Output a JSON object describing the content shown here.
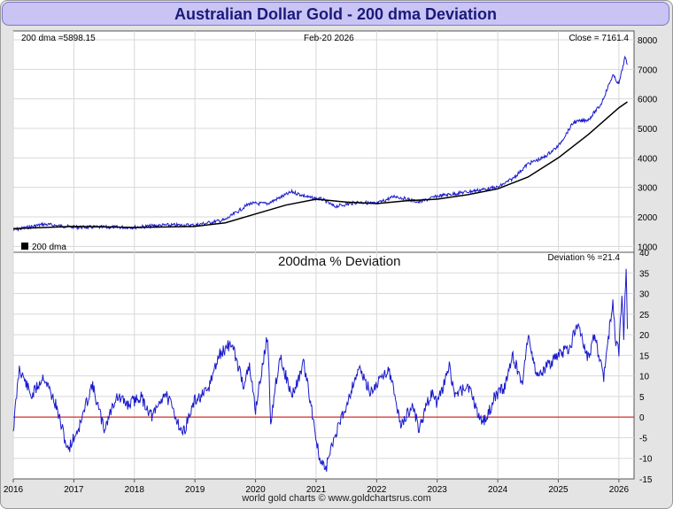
{
  "title": "Australian Dollar Gold - 200 dma Deviation",
  "footer": "world gold charts © www.goldchartsrus.com",
  "colors": {
    "price": "#1a1acc",
    "dma": "#000000",
    "deviation": "#1a1acc",
    "zero_line": "#cc0000",
    "title_bg": "#c9c4f4",
    "title_text": "#1a1a7a"
  },
  "chart_data": [
    {
      "type": "line",
      "panel": "price",
      "info_left": "200 dma =5898.15",
      "info_date": "Feb-20  2026",
      "info_close": "Close = 7161.4",
      "legend": "200 dma",
      "ylim": [
        800,
        8300
      ],
      "yticks": [
        1000,
        2000,
        3000,
        4000,
        5000,
        6000,
        7000,
        8000
      ],
      "xlim": [
        2016.0,
        2026.25
      ],
      "series": [
        {
          "name": "Price",
          "x": [
            2016.0,
            2016.5,
            2017.0,
            2017.5,
            2018.0,
            2018.5,
            2019.0,
            2019.5,
            2019.9,
            2020.2,
            2020.6,
            2020.9,
            2021.1,
            2021.3,
            2021.7,
            2022.0,
            2022.3,
            2022.7,
            2023.0,
            2023.5,
            2024.0,
            2024.25,
            2024.5,
            2024.75,
            2025.0,
            2025.25,
            2025.5,
            2025.7,
            2025.9,
            2026.0,
            2026.1,
            2026.14
          ],
          "y": [
            1550,
            1750,
            1650,
            1650,
            1650,
            1720,
            1720,
            1900,
            2450,
            2450,
            2850,
            2650,
            2600,
            2350,
            2500,
            2450,
            2700,
            2500,
            2700,
            2850,
            3000,
            3300,
            3800,
            4000,
            4400,
            5200,
            5300,
            5800,
            6800,
            6500,
            7400,
            7161
          ]
        },
        {
          "x": [
            2016.0,
            2017.0,
            2018.0,
            2019.0,
            2019.5,
            2020.0,
            2020.5,
            2021.0,
            2021.5,
            2022.0,
            2022.5,
            2023.0,
            2023.5,
            2024.0,
            2024.5,
            2025.0,
            2025.5,
            2026.0,
            2026.14
          ],
          "y": [
            1600,
            1680,
            1640,
            1680,
            1800,
            2100,
            2400,
            2600,
            2500,
            2450,
            2550,
            2600,
            2750,
            2950,
            3350,
            4000,
            4800,
            5700,
            5898
          ]
        }
      ]
    },
    {
      "type": "line",
      "panel": "deviation",
      "title": "200dma  %  Deviation",
      "info_right": "Deviation % =21.4",
      "ylim": [
        -15,
        40
      ],
      "yticks": [
        -15,
        -10,
        -5,
        0,
        5,
        10,
        15,
        20,
        25,
        30,
        35,
        40
      ],
      "xlim": [
        2016.0,
        2026.25
      ],
      "xticks": [
        "2016",
        "2017",
        "2018",
        "2019",
        "2020",
        "2021",
        "2022",
        "2023",
        "2024",
        "2025",
        "2026"
      ],
      "series": [
        {
          "x": [
            2016.0,
            2016.1,
            2016.3,
            2016.5,
            2016.7,
            2016.9,
            2017.1,
            2017.3,
            2017.5,
            2017.7,
            2017.9,
            2018.1,
            2018.3,
            2018.5,
            2018.6,
            2018.8,
            2019.0,
            2019.2,
            2019.4,
            2019.6,
            2019.8,
            2019.9,
            2020.0,
            2020.2,
            2020.25,
            2020.4,
            2020.6,
            2020.8,
            2020.95,
            2021.05,
            2021.15,
            2021.3,
            2021.5,
            2021.7,
            2021.9,
            2022.0,
            2022.2,
            2022.4,
            2022.6,
            2022.7,
            2022.9,
            2023.0,
            2023.2,
            2023.3,
            2023.5,
            2023.7,
            2023.8,
            2023.95,
            2024.1,
            2024.25,
            2024.4,
            2024.5,
            2024.65,
            2024.8,
            2025.0,
            2025.2,
            2025.3,
            2025.5,
            2025.6,
            2025.7,
            2025.75,
            2025.9,
            2025.95,
            2026.0,
            2026.05,
            2026.08,
            2026.12,
            2026.14
          ],
          "y": [
            -3,
            12,
            5,
            10,
            3,
            -8,
            -2,
            8,
            -3,
            5,
            3,
            5,
            0,
            6,
            3,
            -4,
            4,
            6,
            15,
            18,
            8,
            12,
            2,
            20,
            -1,
            15,
            5,
            13,
            0,
            -10,
            -13,
            -5,
            3,
            12,
            6,
            8,
            12,
            -2,
            3,
            -3,
            6,
            3,
            12,
            5,
            8,
            0,
            -1,
            5,
            7,
            15,
            8,
            20,
            10,
            12,
            15,
            17,
            23,
            14,
            20,
            13,
            10,
            28,
            18,
            16,
            30,
            20,
            35,
            21.4
          ]
        }
      ]
    }
  ]
}
